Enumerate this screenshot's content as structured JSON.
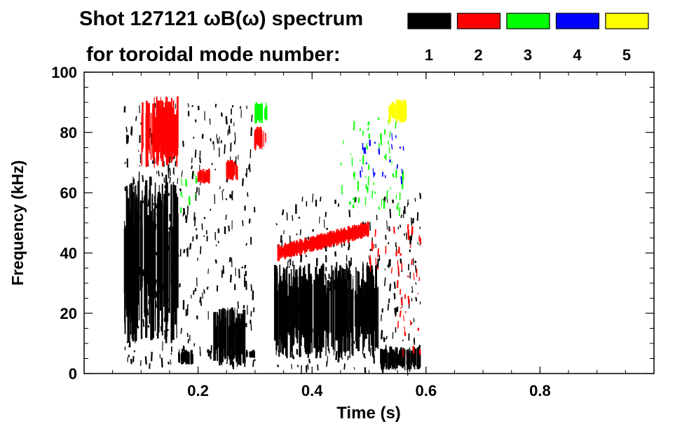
{
  "chart_data": {
    "type": "heatmap",
    "title_line1": "Shot 127121 ωB(ω) spectrum",
    "title_line2": "for toroidal mode number:",
    "xlabel": "Time (s)",
    "ylabel": "Frequency (kHz)",
    "xlim": [
      0.0,
      1.0
    ],
    "ylim": [
      0,
      100
    ],
    "x_ticks": [
      0.2,
      0.4,
      0.6,
      0.8
    ],
    "x_tick_labels": [
      "0.2",
      "0.4",
      "0.6",
      "0.8"
    ],
    "y_ticks": [
      0,
      20,
      40,
      60,
      80,
      100
    ],
    "y_tick_labels": [
      "0",
      "20",
      "40",
      "60",
      "80",
      "100"
    ],
    "legend": [
      {
        "n": "1",
        "color": "#000000"
      },
      {
        "n": "2",
        "color": "#ff0000"
      },
      {
        "n": "3",
        "color": "#00ff00"
      },
      {
        "n": "4",
        "color": "#0000ff"
      },
      {
        "n": "5",
        "color": "#ffff00"
      }
    ],
    "regions": [
      {
        "mode": "1",
        "t": [
          0.07,
          0.165
        ],
        "f": [
          10,
          67
        ],
        "kind": "block"
      },
      {
        "mode": "1",
        "t": [
          0.165,
          0.19
        ],
        "f": [
          3,
          8
        ],
        "kind": "block"
      },
      {
        "mode": "1",
        "t": [
          0.225,
          0.285
        ],
        "f": [
          2,
          22
        ],
        "kind": "block"
      },
      {
        "mode": "1",
        "t": [
          0.285,
          0.3
        ],
        "f": [
          5,
          8
        ],
        "kind": "block"
      },
      {
        "mode": "1",
        "t": [
          0.335,
          0.52
        ],
        "f": [
          5,
          37
        ],
        "kind": "block"
      },
      {
        "mode": "1",
        "t": [
          0.52,
          0.59
        ],
        "f": [
          1,
          9
        ],
        "kind": "block"
      },
      {
        "mode": "1",
        "t": [
          0.335,
          0.59
        ],
        "f": [
          2,
          60
        ],
        "kind": "scatter"
      },
      {
        "mode": "1",
        "t": [
          0.07,
          0.3
        ],
        "f": [
          3,
          90
        ],
        "kind": "scatter"
      },
      {
        "mode": "2",
        "t": [
          0.1,
          0.165
        ],
        "f": [
          68,
          92
        ],
        "kind": "block"
      },
      {
        "mode": "2",
        "t": [
          0.2,
          0.22
        ],
        "f": [
          63,
          68
        ],
        "kind": "block"
      },
      {
        "mode": "2",
        "t": [
          0.25,
          0.27
        ],
        "f": [
          64,
          71
        ],
        "kind": "block"
      },
      {
        "mode": "2",
        "t": [
          0.3,
          0.32
        ],
        "f": [
          74,
          82
        ],
        "kind": "block"
      },
      {
        "mode": "2",
        "t": [
          0.34,
          0.5
        ],
        "f": [
          38,
          50
        ],
        "kind": "band"
      },
      {
        "mode": "2",
        "t": [
          0.5,
          0.59
        ],
        "f": [
          35,
          50
        ],
        "kind": "scatter"
      },
      {
        "mode": "2",
        "t": [
          0.55,
          0.59
        ],
        "f": [
          8,
          40
        ],
        "kind": "scatter"
      },
      {
        "mode": "3",
        "t": [
          0.3,
          0.32
        ],
        "f": [
          83,
          90
        ],
        "kind": "block"
      },
      {
        "mode": "3",
        "t": [
          0.45,
          0.56
        ],
        "f": [
          55,
          85
        ],
        "kind": "scatter"
      },
      {
        "mode": "3",
        "t": [
          0.17,
          0.2
        ],
        "f": [
          55,
          68
        ],
        "kind": "scatter"
      },
      {
        "mode": "4",
        "t": [
          0.48,
          0.56
        ],
        "f": [
          65,
          80
        ],
        "kind": "scatter"
      },
      {
        "mode": "5",
        "t": [
          0.535,
          0.565
        ],
        "f": [
          83,
          91
        ],
        "kind": "block"
      }
    ]
  }
}
